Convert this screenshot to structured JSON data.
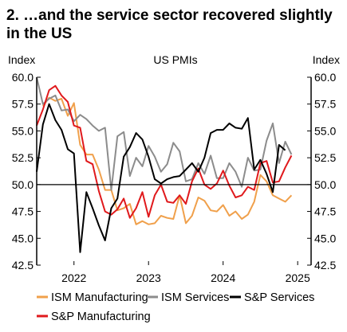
{
  "title": "2. …and the service sector recovered slightly in the US",
  "chart_data": {
    "type": "line",
    "title": "US PMIs",
    "ylabel_left": "Index",
    "ylabel_right": "Index",
    "ylim": [
      42.5,
      60.0
    ],
    "yticks": [
      "60.0",
      "57.5",
      "55.0",
      "52.5",
      "50.0",
      "47.5",
      "45.0",
      "42.5"
    ],
    "ytick_values": [
      60.0,
      57.5,
      55.0,
      52.5,
      50.0,
      47.5,
      45.0,
      42.5
    ],
    "x_range": [
      2021.5,
      2025.18
    ],
    "xticks": [
      "2022",
      "2023",
      "2024",
      "2025"
    ],
    "xtick_values": [
      2022.0,
      2023.0,
      2024.0,
      2025.0
    ],
    "reference_line": 50.0,
    "grid": false,
    "legend_position": "bottom",
    "series": [
      {
        "name": "ISM Manufacturing",
        "color": "#f0a04b",
        "x": [
          2021.583,
          2021.667,
          2021.75,
          2021.833,
          2021.917,
          2022.0,
          2022.083,
          2022.167,
          2022.25,
          2022.333,
          2022.417,
          2022.5,
          2022.583,
          2022.667,
          2022.75,
          2022.833,
          2022.917,
          2023.0,
          2023.083,
          2023.167,
          2023.25,
          2023.333,
          2023.417,
          2023.5,
          2023.583,
          2023.667,
          2023.75,
          2023.833,
          2023.917,
          2024.0,
          2024.083,
          2024.167,
          2024.25,
          2024.333,
          2024.417,
          2024.5,
          2024.583,
          2024.667,
          2024.75,
          2024.833,
          2024.917,
          2025.0,
          2025.083
        ],
        "values": [
          57.3,
          58.1,
          57.8,
          58.0,
          56.4,
          57.6,
          53.7,
          52.8,
          52.8,
          51.4,
          49.5,
          49.5,
          47.6,
          47.8,
          48.2,
          46.3,
          46.6,
          46.3,
          46.4,
          47.1,
          46.9,
          46.8,
          49.0,
          46.4,
          47.1,
          48.8,
          48.5,
          47.6,
          47.5,
          48.1,
          47.1,
          47.5,
          46.8,
          47.2,
          48.4,
          50.9,
          50.3,
          49.0,
          48.7,
          48.4,
          49.0,
          null,
          null
        ]
      },
      {
        "name": "ISM Services",
        "color": "#8c8c8c",
        "x": [
          2021.5,
          2021.583,
          2021.667,
          2021.75,
          2021.833,
          2021.917,
          2022.0,
          2022.083,
          2022.167,
          2022.25,
          2022.333,
          2022.417,
          2022.5,
          2022.583,
          2022.667,
          2022.75,
          2022.833,
          2022.917,
          2023.0,
          2023.083,
          2023.167,
          2023.25,
          2023.333,
          2023.417,
          2023.5,
          2023.583,
          2023.667,
          2023.75,
          2023.833,
          2023.917,
          2024.0,
          2024.083,
          2024.167,
          2024.25,
          2024.333,
          2024.417,
          2024.5,
          2024.583,
          2024.667,
          2024.75,
          2024.833,
          2024.917,
          2025.0,
          2025.083
        ],
        "values": [
          60.0,
          57.5,
          58.0,
          58.3,
          56.9,
          57.0,
          55.9,
          56.5,
          56.1,
          55.5,
          55.0,
          55.3,
          49.5,
          54.5,
          54.9,
          50.8,
          52.5,
          51.7,
          53.6,
          52.6,
          51.2,
          51.9,
          53.9,
          53.1,
          50.3,
          50.5,
          52.0,
          51.0,
          52.7,
          50.6,
          50.6,
          52.0,
          51.2,
          49.8,
          52.5,
          51.3,
          51.4,
          54.1,
          55.7,
          52.0,
          54.0,
          52.8,
          null,
          null
        ]
      },
      {
        "name": "S&P Services",
        "color": "#000000",
        "x": [
          2021.5,
          2021.583,
          2021.667,
          2021.75,
          2021.833,
          2021.917,
          2022.0,
          2022.083,
          2022.167,
          2022.25,
          2022.333,
          2022.417,
          2022.5,
          2022.583,
          2022.667,
          2022.75,
          2022.833,
          2022.917,
          2023.0,
          2023.083,
          2023.167,
          2023.25,
          2023.333,
          2023.417,
          2023.5,
          2023.583,
          2023.667,
          2023.75,
          2023.833,
          2023.917,
          2024.0,
          2024.083,
          2024.167,
          2024.25,
          2024.333,
          2024.417,
          2024.5,
          2024.583,
          2024.667,
          2024.75,
          2024.833,
          2024.917,
          2025.0,
          2025.083
        ],
        "values": [
          51.2,
          55.6,
          57.5,
          56.0,
          55.1,
          53.3,
          52.9,
          43.7,
          49.3,
          47.8,
          46.2,
          44.8,
          47.8,
          48.7,
          52.6,
          53.5,
          54.8,
          54.2,
          52.6,
          50.5,
          50.1,
          50.5,
          50.7,
          50.8,
          51.4,
          52.0,
          51.2,
          52.5,
          54.8,
          55.1,
          55.1,
          55.7,
          55.3,
          55.2,
          56.2,
          51.4,
          52.3,
          51.0,
          49.3,
          53.7,
          53.2,
          null,
          null,
          null
        ]
      },
      {
        "name": "S&P Manufacturing",
        "color": "#e0191c",
        "x": [
          2021.5,
          2021.583,
          2021.667,
          2021.75,
          2021.833,
          2021.917,
          2022.0,
          2022.083,
          2022.167,
          2022.25,
          2022.333,
          2022.417,
          2022.5,
          2022.583,
          2022.667,
          2022.75,
          2022.833,
          2022.917,
          2023.0,
          2023.083,
          2023.167,
          2023.25,
          2023.333,
          2023.417,
          2023.5,
          2023.583,
          2023.667,
          2023.75,
          2023.833,
          2023.917,
          2024.0,
          2024.083,
          2024.167,
          2024.25,
          2024.333,
          2024.417,
          2024.5,
          2024.583,
          2024.667,
          2024.75,
          2024.833,
          2024.917,
          2025.0,
          2025.083
        ],
        "values": [
          55.5,
          57.0,
          58.8,
          59.2,
          58.3,
          57.7,
          55.5,
          55.3,
          52.2,
          51.9,
          49.4,
          47.5,
          47.2,
          47.7,
          48.7,
          46.9,
          47.8,
          49.3,
          47.0,
          49.0,
          50.0,
          48.4,
          48.3,
          49.0,
          48.2,
          50.3,
          51.5,
          50.0,
          49.6,
          50.1,
          51.3,
          49.9,
          48.8,
          49.0,
          49.8,
          49.5,
          52.0,
          52.2,
          50.2,
          50.3,
          51.6,
          52.7,
          null,
          null
        ]
      }
    ]
  }
}
